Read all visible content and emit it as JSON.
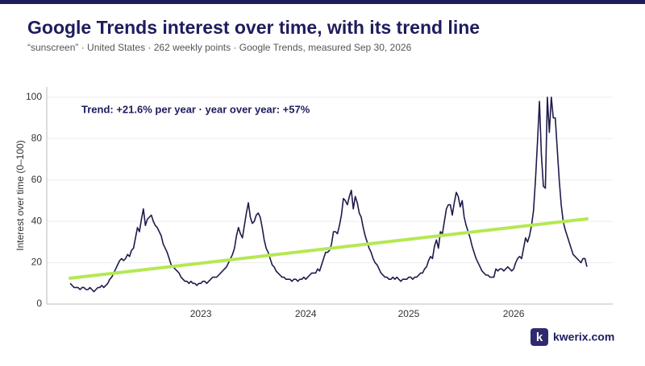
{
  "chart_data": {
    "type": "line",
    "title": "Google Trends interest over time, with its trend line",
    "subtitle": "“sunscreen” · United States · 262 weekly points · Google Trends, measured Sep 30, 2026",
    "y_label": "Interest over time (0–100)",
    "annotation": "Trend: +21.6% per year · year over year: +57%",
    "brand_icon": "k",
    "brand": "kwerix.com",
    "color": "#1e1b4b",
    "grid": true,
    "ylim": [
      0,
      105
    ],
    "yticks": [
      0,
      20,
      40,
      60,
      80,
      100
    ],
    "trend_line": {
      "start": 12.5,
      "end": 41.2,
      "color": "#b5e853"
    },
    "categories": [
      null,
      null,
      null,
      null,
      null,
      null,
      null,
      null,
      null,
      null,
      null,
      null,
      null,
      null,
      null,
      null,
      null,
      null,
      null,
      null,
      null,
      null,
      null,
      null,
      null,
      null,
      null,
      null,
      null,
      null,
      null,
      null,
      null,
      null,
      null,
      null,
      null,
      null,
      null,
      null,
      null,
      null,
      null,
      null,
      null,
      null,
      null,
      null,
      null,
      null,
      null,
      null,
      null,
      null,
      null,
      null,
      null,
      null,
      null,
      null,
      null,
      null,
      null,
      null,
      null,
      null,
      "2023",
      null,
      null,
      null,
      null,
      null,
      null,
      null,
      null,
      null,
      null,
      null,
      null,
      null,
      null,
      null,
      null,
      null,
      null,
      null,
      null,
      null,
      null,
      null,
      null,
      null,
      null,
      null,
      null,
      null,
      null,
      null,
      null,
      null,
      null,
      null,
      null,
      null,
      null,
      null,
      null,
      null,
      null,
      null,
      null,
      null,
      null,
      null,
      null,
      null,
      null,
      null,
      null,
      "2024",
      null,
      null,
      null,
      null,
      null,
      null,
      null,
      null,
      null,
      null,
      null,
      null,
      null,
      null,
      null,
      null,
      null,
      null,
      null,
      null,
      null,
      null,
      null,
      null,
      null,
      null,
      null,
      null,
      null,
      null,
      null,
      null,
      null,
      null,
      null,
      null,
      null,
      null,
      null,
      null,
      null,
      null,
      null,
      null,
      null,
      null,
      null,
      null,
      null,
      null,
      null,
      "2025",
      null,
      null,
      null,
      null,
      null,
      null,
      null,
      null,
      null,
      null,
      null,
      null,
      null,
      null,
      null,
      null,
      null,
      null,
      null,
      null,
      null,
      null,
      null,
      null,
      null,
      null,
      null,
      null,
      null,
      null,
      null,
      null,
      null,
      null,
      null,
      null,
      null,
      null,
      null,
      null,
      null,
      null,
      null,
      null,
      null,
      null,
      null,
      null,
      null,
      null,
      null,
      null,
      "2026",
      null,
      null,
      null,
      null,
      null,
      null,
      null,
      null,
      null,
      null,
      null,
      null,
      null,
      null,
      null,
      null,
      null,
      null,
      null,
      null,
      null,
      null,
      null,
      null,
      null,
      null,
      null,
      null,
      null,
      null,
      null,
      null,
      null,
      null,
      null,
      null,
      null
    ],
    "values": [
      10,
      9,
      8,
      8,
      8,
      7,
      8,
      8,
      7,
      7,
      8,
      7,
      6,
      7,
      8,
      8,
      9,
      8,
      9,
      10,
      12,
      13,
      15,
      17,
      19,
      21,
      22,
      21,
      22,
      24,
      23,
      26,
      27,
      32,
      37,
      35,
      41,
      46,
      38,
      41,
      42,
      43,
      40,
      38,
      37,
      35,
      33,
      29,
      27,
      25,
      22,
      19,
      18,
      17,
      16,
      15,
      13,
      12,
      11,
      11,
      10,
      11,
      10,
      10,
      9,
      10,
      10,
      11,
      11,
      10,
      11,
      12,
      13,
      13,
      13,
      14,
      15,
      16,
      17,
      18,
      20,
      22,
      24,
      27,
      33,
      37,
      34,
      32,
      38,
      44,
      49,
      42,
      39,
      40,
      43,
      44,
      42,
      37,
      31,
      27,
      25,
      22,
      19,
      18,
      16,
      15,
      14,
      13,
      13,
      12,
      12,
      12,
      11,
      12,
      12,
      11,
      12,
      12,
      13,
      12,
      13,
      14,
      15,
      15,
      15,
      17,
      16,
      19,
      22,
      25,
      25,
      26,
      29,
      35,
      35,
      34,
      38,
      43,
      51,
      50,
      48,
      52,
      55,
      46,
      52,
      49,
      44,
      42,
      37,
      33,
      30,
      27,
      25,
      22,
      20,
      19,
      17,
      15,
      14,
      13,
      13,
      12,
      12,
      13,
      12,
      13,
      12,
      11,
      12,
      12,
      12,
      13,
      13,
      12,
      13,
      13,
      14,
      15,
      15,
      17,
      18,
      21,
      23,
      22,
      28,
      31,
      27,
      35,
      34,
      40,
      46,
      48,
      48,
      43,
      49,
      54,
      52,
      47,
      50,
      42,
      38,
      35,
      32,
      28,
      25,
      22,
      20,
      18,
      16,
      15,
      14,
      14,
      13,
      13,
      13,
      17,
      16,
      17,
      17,
      16,
      17,
      18,
      17,
      16,
      17,
      20,
      22,
      23,
      22,
      27,
      32,
      30,
      33,
      38,
      45,
      60,
      78,
      98,
      72,
      57,
      56,
      100,
      83,
      100,
      90,
      90,
      75,
      60,
      48,
      40,
      36,
      33,
      30,
      27,
      24,
      23,
      22,
      21,
      20,
      22,
      22,
      18
    ]
  }
}
